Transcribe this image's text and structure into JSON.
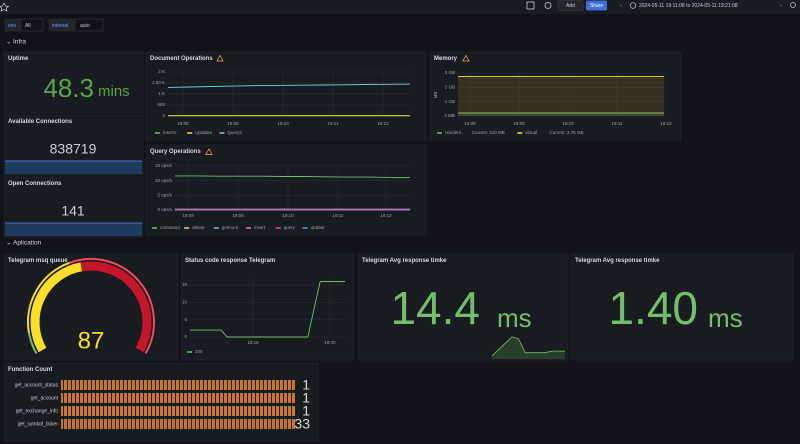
{
  "toolbar": {
    "add": "Add",
    "share": "Share",
    "time_range": "2024-05-11 19:11:08 to 2024-05-11 19:21:08"
  },
  "variables": [
    {
      "name": "env",
      "value": "All"
    },
    {
      "name": "interval",
      "value": "auto"
    }
  ],
  "rows": [
    "Infra",
    "Aplication"
  ],
  "panels": {
    "uptime": {
      "title": "Uptime",
      "value": "48.3",
      "unit": "mins"
    },
    "available_connections": {
      "title": "Available Connections",
      "value": "838719"
    },
    "open_connections": {
      "title": "Open Connections",
      "value": "141"
    },
    "document_operations": {
      "title": "Document Operations",
      "type": "line",
      "ylim": [
        0,
        2000
      ],
      "yticks": [
        0,
        500,
        {
          "value": 1000,
          "label": "1 K"
        },
        {
          "value": 1500,
          "label": "1.50 K"
        },
        {
          "value": 2000,
          "label": "2 K"
        }
      ],
      "xticks": [
        "19:08",
        "19:09",
        "19:10",
        "19:11",
        "19:12"
      ],
      "series": [
        {
          "name": "Inserts",
          "color": "#73bf69",
          "values": [
            20,
            20,
            20,
            20,
            20,
            20,
            20,
            20,
            20,
            20,
            20,
            20
          ]
        },
        {
          "name": "Updates",
          "color": "#fade2a",
          "values": [
            10,
            10,
            10,
            10,
            10,
            10,
            10,
            10,
            10,
            10,
            10,
            10
          ]
        },
        {
          "name": "Querys",
          "color": "#6ed0e0",
          "values": [
            1300,
            1320,
            1340,
            1360,
            1380,
            1390,
            1400,
            1410,
            1420,
            1430,
            1440,
            1450
          ]
        }
      ]
    },
    "memory": {
      "title": "Memory",
      "type": "line",
      "ylabel": "MB",
      "ylim": [
        0,
        3
      ],
      "yticks": [
        {
          "value": 0,
          "label": "0 MB"
        },
        {
          "value": 1,
          "label": "1 GB"
        },
        {
          "value": 2,
          "label": "2 GB"
        },
        {
          "value": 3,
          "label": "3 GB"
        }
      ],
      "xticks": [
        "19:08",
        "19:09",
        "19:10",
        "19:11",
        "19:12"
      ],
      "series": [
        {
          "name": "resident",
          "current": "Current: 210 MB",
          "color": "#73bf69",
          "values": [
            0.21,
            0.21,
            0.21,
            0.21,
            0.21,
            0.21,
            0.21,
            0.21,
            0.21,
            0.21,
            0.21,
            0.21
          ]
        },
        {
          "name": "virtual",
          "current": "Current: 2.75 GB",
          "color": "#fade2a",
          "values": [
            2.75,
            2.75,
            2.75,
            2.75,
            2.75,
            2.75,
            2.75,
            2.75,
            2.75,
            2.75,
            2.75,
            2.75
          ]
        }
      ]
    },
    "query_operations": {
      "title": "Query Operations",
      "type": "line",
      "ylim": [
        0,
        16
      ],
      "yticks": [
        {
          "value": 0,
          "label": "0 ops/s"
        },
        {
          "value": 5,
          "label": "5 ops/s"
        },
        {
          "value": 10,
          "label": "10 ops/s"
        },
        {
          "value": 15,
          "label": "15 ops/s"
        }
      ],
      "xticks": [
        "19:08",
        "19:09",
        "19:10",
        "19:11",
        "19:12"
      ],
      "series": [
        {
          "name": "command",
          "color": "#73bf69",
          "values": [
            11.6,
            11.6,
            11.5,
            11.5,
            11.5,
            11.4,
            11.4,
            11.3,
            11.2,
            11.2,
            11.1,
            11.1
          ]
        },
        {
          "name": "delete",
          "color": "#fade2a",
          "values": [
            0,
            0,
            0,
            0,
            0,
            0,
            0,
            0,
            0,
            0,
            0,
            0
          ]
        },
        {
          "name": "getmore",
          "color": "#8ab8ff",
          "values": [
            0,
            0,
            0,
            0,
            0,
            0,
            0,
            0,
            0,
            0,
            0,
            0
          ]
        },
        {
          "name": "insert",
          "color": "#ff7383",
          "values": [
            0.3,
            0.3,
            0.3,
            0.3,
            0.3,
            0.3,
            0.3,
            0.3,
            0.3,
            0.3,
            0.3,
            0.3
          ]
        },
        {
          "name": "query",
          "color": "#f2495c",
          "values": [
            0.1,
            0.1,
            0.1,
            0.1,
            0.1,
            0.1,
            0.1,
            0.1,
            0.1,
            0.1,
            0.1,
            0.1
          ]
        },
        {
          "name": "update",
          "color": "#5794f2",
          "values": [
            0,
            0,
            0,
            0,
            0,
            0,
            0,
            0,
            0,
            0,
            0,
            0
          ]
        }
      ]
    },
    "telegram_msg_queue": {
      "title": "Telegram msq queue",
      "value": "87"
    },
    "status_code": {
      "title": "Status code response Telegram",
      "type": "line",
      "ylim": [
        0,
        17
      ],
      "yticks": [
        0,
        5,
        10,
        15
      ],
      "xticks": [
        "19:15",
        "19:20"
      ],
      "series": [
        {
          "name": "200",
          "color": "#73bf69",
          "values": [
            2,
            2,
            2,
            2,
            2,
            2,
            0,
            0,
            0,
            0,
            0,
            0,
            0,
            0,
            0,
            0,
            0,
            0,
            0,
            0,
            8,
            16,
            16,
            16,
            16,
            16
          ]
        }
      ]
    },
    "avg_response_1": {
      "title": "Telegram Avg response timke",
      "value": "14.4",
      "unit": "ms",
      "sparkline": [
        2,
        6,
        10,
        14,
        13,
        4,
        4,
        4,
        4,
        5,
        5,
        5
      ]
    },
    "avg_response_2": {
      "title": "Telegram Avg response timke",
      "value": "1.40",
      "unit": "ms"
    },
    "function_count": {
      "title": "Function Count",
      "rows": [
        {
          "name": "get_account_status",
          "value": 1
        },
        {
          "name": "get_account",
          "value": 1
        },
        {
          "name": "get_exchange_info",
          "value": 1
        },
        {
          "name": "get_symbol_ticker",
          "value": 33
        }
      ]
    }
  }
}
